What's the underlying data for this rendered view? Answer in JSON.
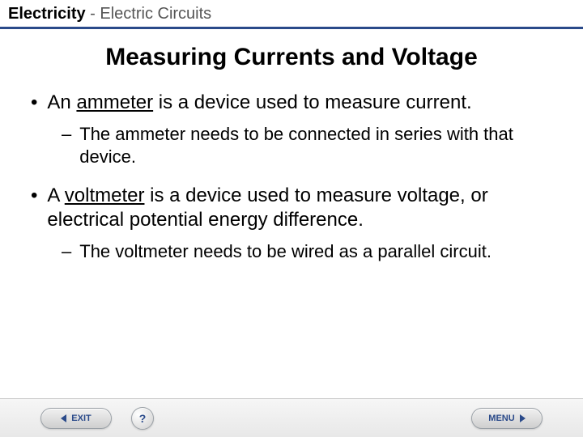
{
  "header": {
    "main": "Electricity",
    "sub": " - Electric Circuits",
    "rule_color": "#2a4a8a"
  },
  "slide": {
    "title": "Measuring Currents and Voltage"
  },
  "bullets": {
    "b1_pre": "An ",
    "b1_term": "ammeter",
    "b1_post": " is a device used to measure current.",
    "b1_sub": "The ammeter needs to be connected in series with that device.",
    "b2_pre": "A ",
    "b2_term": "voltmeter",
    "b2_post": " is a device used to measure voltage, or electrical potential energy difference.",
    "b2_sub": "The voltmeter needs to be wired as a parallel circuit."
  },
  "footer": {
    "exit_label": "EXIT",
    "help_label": "?",
    "menu_label": "MENU"
  },
  "colors": {
    "text": "#000000",
    "subheader": "#555555",
    "accent": "#2a4a8a",
    "footer_bg_top": "#f6f6f6",
    "footer_bg_bottom": "#e8e8e8"
  }
}
